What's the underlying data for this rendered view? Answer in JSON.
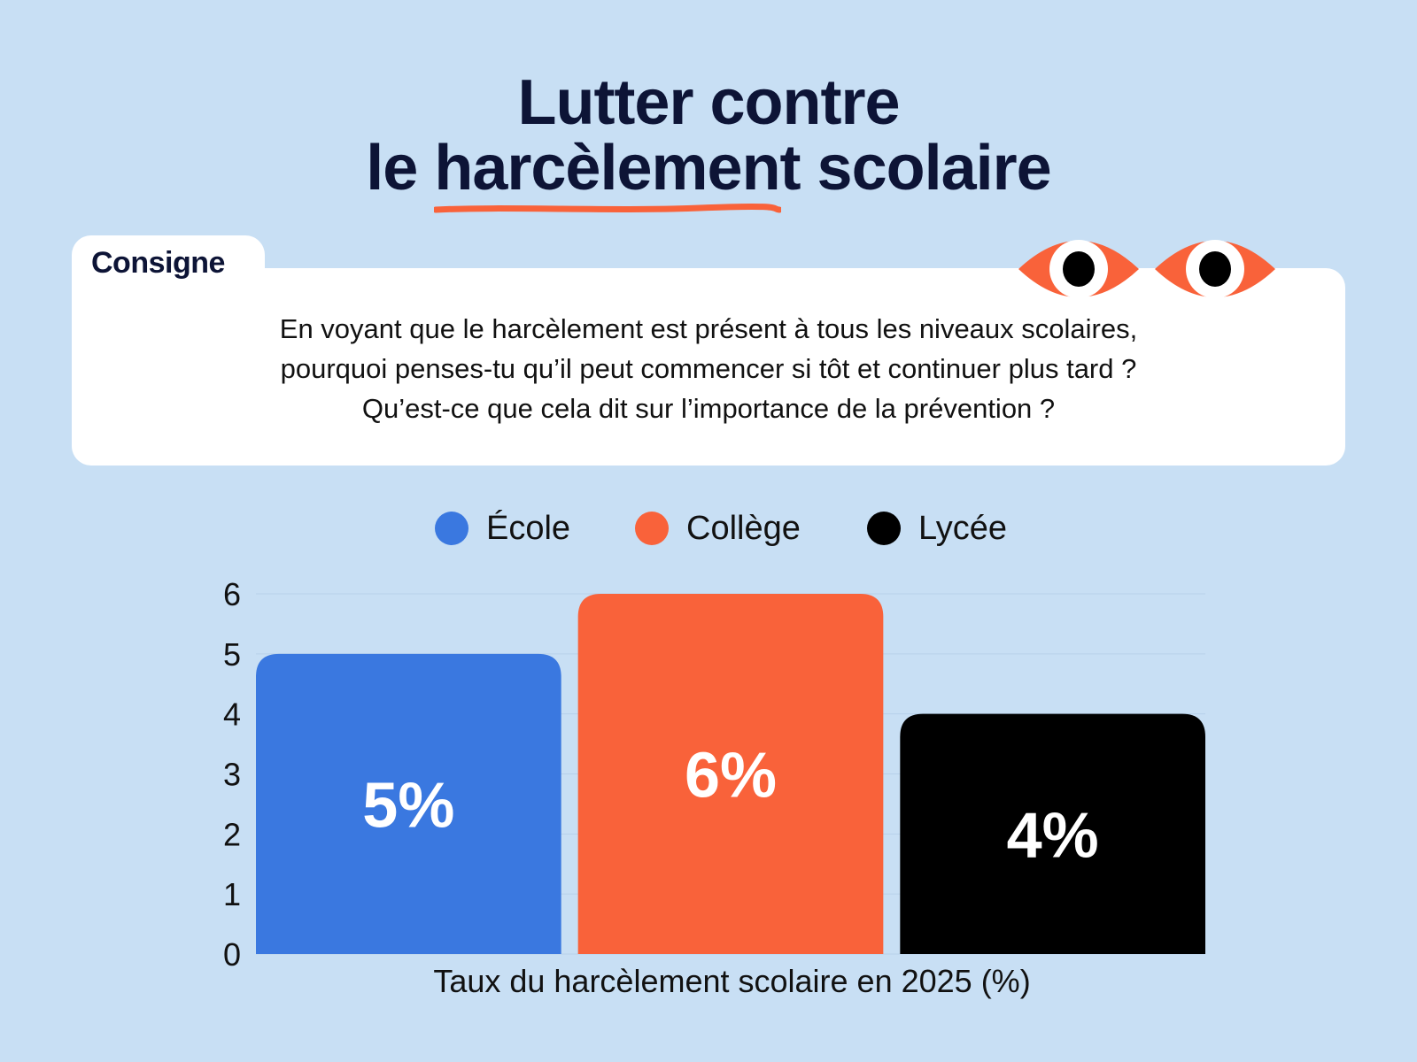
{
  "header": {
    "title_line1": "Lutter contre",
    "title_line2": "le harcèlement scolaire"
  },
  "prompt_card": {
    "tab_label": "Consigne",
    "lines": [
      "En voyant que le harcèlement est présent à tous les niveaux scolaires,",
      "pourquoi penses-tu qu’il peut commencer si tôt et continuer plus tard ?",
      "Qu’est-ce que cela dit sur l’importance de la prévention ?"
    ]
  },
  "colors": {
    "background": "#c8dff4",
    "title": "#0d1436",
    "accent_orange": "#f9623a",
    "blue": "#3a78e0",
    "black": "#000000"
  },
  "chart_data": {
    "type": "bar",
    "categories": [
      "École",
      "Collège",
      "Lycée"
    ],
    "values": [
      5,
      6,
      4
    ],
    "data_labels": [
      "5%",
      "6%",
      "4%"
    ],
    "colors": [
      "#3a78e0",
      "#f9623a",
      "#000000"
    ],
    "legend": [
      "École",
      "Collège",
      "Lycée"
    ],
    "legend_position": "top",
    "xlabel": "Taux du harcèlement scolaire en 2025 (%)",
    "ylabel": "",
    "ylim": [
      0,
      6
    ],
    "yticks": [
      0,
      1,
      2,
      3,
      4,
      5,
      6
    ],
    "grid": true
  }
}
